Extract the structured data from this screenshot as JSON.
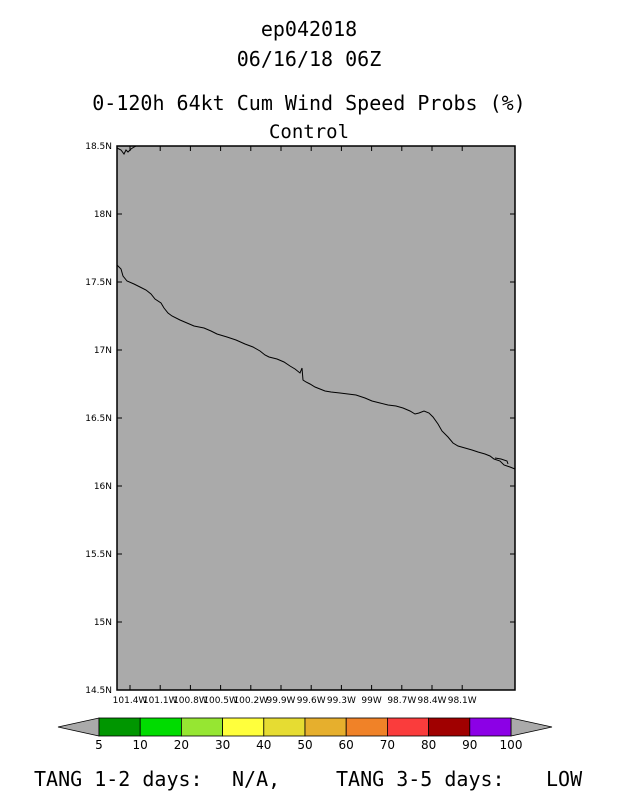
{
  "header": {
    "storm_id": "ep042018",
    "timestamp": "06/16/18 06Z",
    "product_title": "0-120h 64kt Cum Wind Speed Probs (%)",
    "run_label": "Control"
  },
  "map": {
    "background_color": "#aaaaaa",
    "coastline_color": "#000000",
    "lon_ticks": [
      "101.4W",
      "101.1W",
      "100.8W",
      "100.5W",
      "100.2W",
      "99.9W",
      "99.6W",
      "99.3W",
      "99W",
      "98.7W",
      "98.4W",
      "98.1W"
    ],
    "lat_ticks": [
      "18.5N",
      "18N",
      "17.5N",
      "17N",
      "16.5N",
      "16N",
      "15.5N",
      "15N",
      "14.5N"
    ]
  },
  "colorbar": {
    "colors": [
      "#009600",
      "#00dc00",
      "#96e632",
      "#ffff3c",
      "#e6dc32",
      "#e6af2d",
      "#f08228",
      "#fa3c3c",
      "#a00000",
      "#8c00e6"
    ],
    "end_color": "#aaaaaa",
    "labels": [
      "5",
      "10",
      "20",
      "30",
      "40",
      "50",
      "60",
      "70",
      "80",
      "90",
      "100"
    ]
  },
  "footer": {
    "tang_1_2_label": "TANG 1-2 days:",
    "tang_1_2_value": "N/A,",
    "tang_3_5_label": "TANG 3-5 days:",
    "tang_3_5_value": "LOW"
  }
}
